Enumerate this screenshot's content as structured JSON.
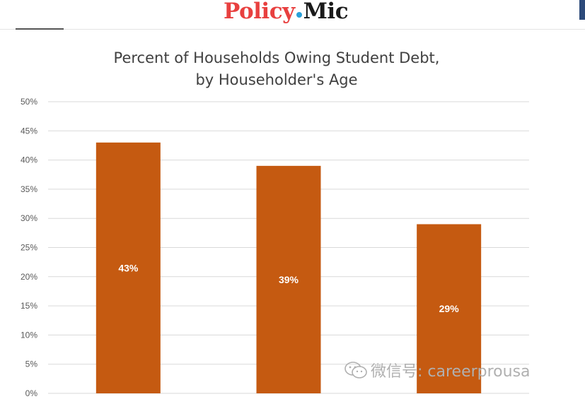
{
  "header": {
    "logo_part1": "Policy",
    "logo_part2": "Mic"
  },
  "watermark": {
    "text": "微信号: careerprousa",
    "icon": "wechat-icon"
  },
  "colors": {
    "bar": "#c55a11",
    "grid": "#d9d9d9",
    "logo_red": "#e8403f",
    "logo_dot": "#2aa0d8"
  },
  "chart_data": {
    "type": "bar",
    "title_line1": "Percent of Households Owing Student Debt,",
    "title_line2": "by Householder's Age",
    "categories": [
      "",
      "",
      ""
    ],
    "values": [
      43,
      39,
      29
    ],
    "data_labels": [
      "43%",
      "39%",
      "29%"
    ],
    "ylim": [
      0,
      50
    ],
    "yticks": [
      "0%",
      "5%",
      "10%",
      "15%",
      "20%",
      "25%",
      "30%",
      "35%",
      "40%",
      "45%",
      "50%"
    ],
    "grid": true,
    "legend": "none"
  }
}
